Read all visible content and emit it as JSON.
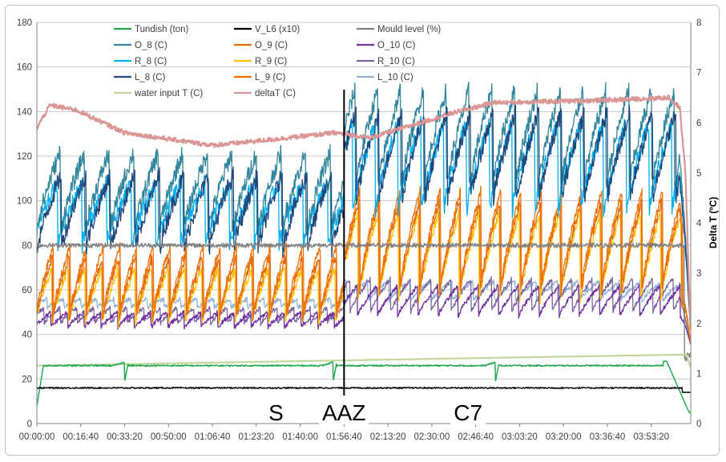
{
  "chart_data": {
    "type": "line",
    "title": "",
    "xlabel": "",
    "ylabel": "",
    "y2label": "Delta T (ºC)",
    "ylim": [
      0,
      180
    ],
    "y2lim": [
      0,
      8
    ],
    "yticks": [
      "0",
      "20",
      "40",
      "60",
      "80",
      "100",
      "120",
      "140",
      "160",
      "180"
    ],
    "y2ticks": [
      "0",
      "1",
      "2",
      "3",
      "4",
      "5",
      "6",
      "7",
      "8"
    ],
    "xlim_seconds": [
      0,
      14900
    ],
    "xticks": [
      "00:00:00",
      "00:16:40",
      "00:33:20",
      "00:50:00",
      "01:06:40",
      "01:23:20",
      "01:40:00",
      "01:56:40",
      "02:13:20",
      "02:30:00",
      "02:46:40",
      "03:03:20",
      "03:20:00",
      "03:36:40",
      "03:53:20"
    ],
    "grid": true,
    "legend_position": "top-inside",
    "legend": [
      {
        "label": "Tundish (ton)",
        "color": "#22a94f"
      },
      {
        "label": "V_L6 (x10)",
        "color": "#000000"
      },
      {
        "label": "Mould level (%)",
        "color": "#7f7f7f"
      },
      {
        "label": "O_8 (C)",
        "color": "#31859c"
      },
      {
        "label": "O_9 (C)",
        "color": "#e36c0a"
      },
      {
        "label": "O_10 (C)",
        "color": "#7030a0"
      },
      {
        "label": "R_8 (C)",
        "color": "#00b0f0"
      },
      {
        "label": "R_9 (C)",
        "color": "#ffc000"
      },
      {
        "label": "R_10 (C)",
        "color": "#8064a2"
      },
      {
        "label": "L_8 (C)",
        "color": "#1f497d"
      },
      {
        "label": "L_9 (C)",
        "color": "#f0700a"
      },
      {
        "label": "L_10 (C)",
        "color": "#95b3d7"
      },
      {
        "label": "water input T (C)",
        "color": "#c4d79b"
      },
      {
        "label": "deltaT (C)",
        "color": "#d99694"
      }
    ],
    "annotations": [
      {
        "text": "S",
        "x_seconds": 5450
      },
      {
        "text": "AAZ",
        "x_seconds": 6500
      },
      {
        "text": "C7",
        "x_seconds": 9500
      }
    ],
    "vertical_marker_seconds": 7000,
    "series_summary": {
      "Tundish (ton)": {
        "start": 8,
        "plateau": 26,
        "dips_at_seconds": [
          2000,
          6750,
          10450,
          14300
        ],
        "end": 5
      },
      "V_L6 (x10)": {
        "value": 16
      },
      "Mould level (%)": {
        "value": 80,
        "end_drop": 30
      },
      "O_8 (C)": {
        "phase1_range": [
          85,
          122
        ],
        "phase2_range": [
          105,
          150
        ]
      },
      "L_8 (C)": {
        "phase1_range": [
          78,
          112
        ],
        "phase2_range": [
          100,
          140
        ]
      },
      "R_8 (C)": {
        "phase1_range": [
          80,
          108
        ],
        "phase2_range": [
          95,
          135
        ]
      },
      "O_9 (C)": {
        "phase1_range": [
          47,
          75
        ],
        "phase2_range": [
          58,
          100
        ]
      },
      "L_9 (C)": {
        "phase1_range": [
          50,
          80
        ],
        "phase2_range": [
          62,
          105
        ]
      },
      "R_9 (C)": {
        "phase1_range": [
          45,
          70
        ],
        "phase2_range": [
          55,
          95
        ]
      },
      "O_10 (C)": {
        "phase1_range": [
          43,
          50
        ],
        "phase2_range": [
          48,
          62
        ]
      },
      "R_10 (C)": {
        "phase1_range": [
          45,
          52
        ],
        "phase2_range": [
          50,
          65
        ]
      },
      "L_10 (C)": {
        "phase1_range": [
          52,
          56
        ],
        "phase2_range": [
          55,
          64
        ]
      },
      "water input T (C)": {
        "start": 26,
        "end": 31
      },
      "deltaT (C)": {
        "start_degC": 5.9,
        "peak_degC": 6.4,
        "trough_degC": 5.4,
        "phase2_degC": 6.4,
        "end_degC": 1.7
      }
    }
  }
}
